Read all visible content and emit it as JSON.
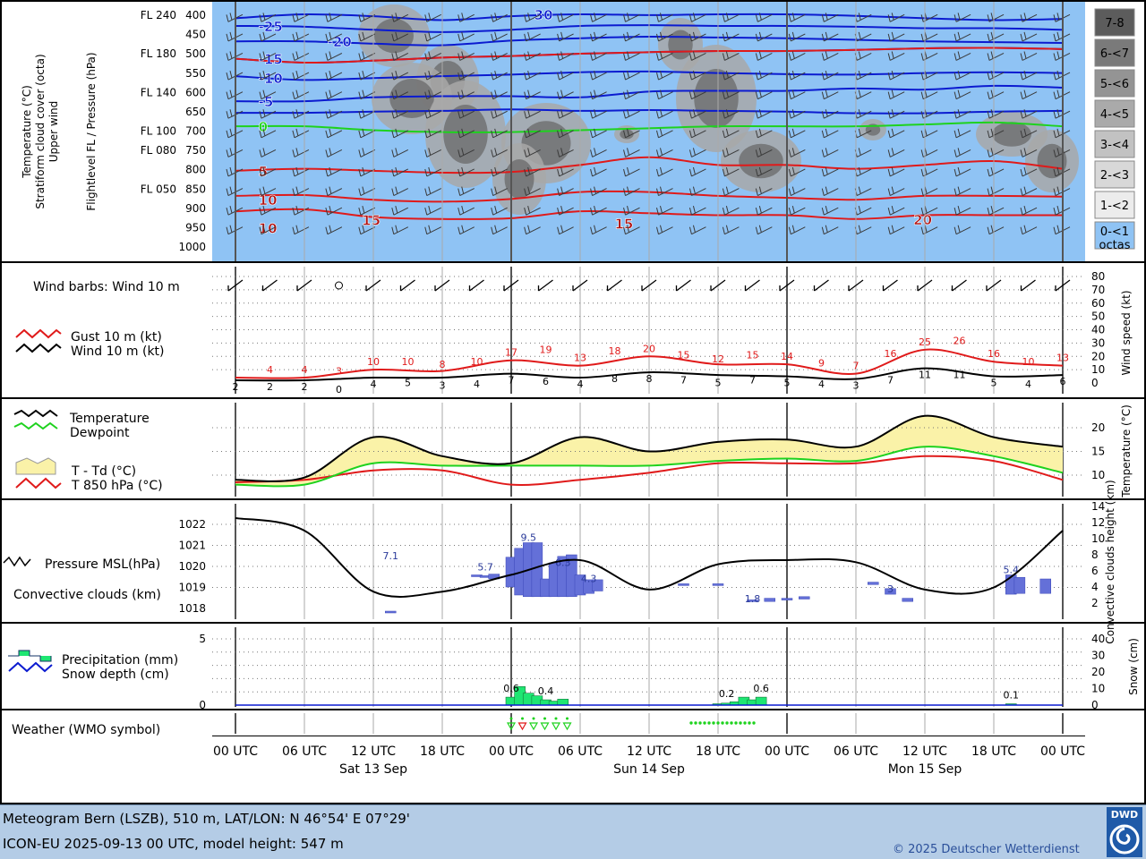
{
  "colors": {
    "sky": "#8fc3f4",
    "temp_iso": "#0b1bd0",
    "freeze": "#1ed21e",
    "warm_iso": "#e01a1a",
    "fill": "#faf2a8",
    "conv": "#6470d8",
    "precip": "#1ee672"
  },
  "header_panel": {
    "ylabel_left": [
      "Temperature (°C)",
      "Stratiform cloud cover (octa)",
      "Upper wind"
    ],
    "ylabel_right": "Flightlevel FL / Pressure (hPa)",
    "pressure_levels": [
      "400",
      "450",
      "500",
      "550",
      "600",
      "650",
      "700",
      "750",
      "800",
      "850",
      "900",
      "950",
      "1000"
    ],
    "flight_levels": [
      {
        "label": "FL 240",
        "level": "400"
      },
      {
        "label": "FL 180",
        "level": "500"
      },
      {
        "label": "FL 140",
        "level": "600"
      },
      {
        "label": "FL 100",
        "level": "700"
      },
      {
        "label": "FL 080",
        "level": "750"
      },
      {
        "label": "FL 050",
        "level": "850"
      }
    ],
    "octa_legend": [
      "7-8",
      "6-<7",
      "5-<6",
      "4-<5",
      "3-<4",
      "2-<3",
      "1-<2",
      "0-<1"
    ],
    "octa_unit": "octas",
    "iso_labels": [
      {
        "t": "-25",
        "x": 2,
        "p": 430,
        "color": "blue"
      },
      {
        "t": "-20",
        "x": 8,
        "p": 470,
        "color": "blue"
      },
      {
        "t": "30",
        "x": 26,
        "p": 400,
        "color": "blue"
      },
      {
        "t": "-15",
        "x": 2,
        "p": 515,
        "color": "blue"
      },
      {
        "t": "-10",
        "x": 2,
        "p": 565,
        "color": "blue"
      },
      {
        "t": "-5",
        "x": 2,
        "p": 625,
        "color": "blue"
      },
      {
        "t": "0",
        "x": 2,
        "p": 690,
        "color": "green"
      },
      {
        "t": "5",
        "x": 2,
        "p": 805,
        "color": "red"
      },
      {
        "t": "10",
        "x": 2,
        "p": 880,
        "color": "red"
      },
      {
        "t": "10",
        "x": 2,
        "p": 952,
        "color": "red"
      },
      {
        "t": "15",
        "x": 11,
        "p": 932,
        "color": "red"
      },
      {
        "t": "15",
        "x": 33,
        "p": 941,
        "color": "red"
      },
      {
        "t": "20",
        "x": 59,
        "p": 930,
        "color": "red"
      }
    ]
  },
  "wind_panel": {
    "title": "Wind barbs: Wind 10 m",
    "legend": [
      "Gust 10 m (kt)",
      "Wind 10 m (kt)"
    ],
    "ylabel": "Wind speed (kt)",
    "yticks": [
      "0",
      "10",
      "20",
      "30",
      "40",
      "50",
      "60",
      "70",
      "80"
    ],
    "gust_labels": [
      [
        "4",
        2
      ],
      [
        "4",
        4
      ],
      [
        "3",
        6
      ],
      [
        "10",
        8
      ],
      [
        "10",
        10
      ],
      [
        "8",
        12
      ],
      [
        "10",
        14
      ],
      [
        "17",
        16
      ],
      [
        "19",
        18
      ],
      [
        "13",
        20
      ],
      [
        "18",
        22
      ],
      [
        "20",
        24
      ],
      [
        "15",
        26
      ],
      [
        "12",
        28
      ],
      [
        "15",
        30
      ],
      [
        "14",
        32
      ],
      [
        "9",
        34
      ],
      [
        "7",
        36
      ],
      [
        "16",
        38
      ],
      [
        "25",
        40
      ],
      [
        "26",
        42
      ],
      [
        "16",
        44
      ],
      [
        "10",
        46
      ],
      [
        "13",
        48
      ]
    ],
    "wind_labels": [
      [
        "2",
        0
      ],
      [
        "2",
        2
      ],
      [
        "2",
        4
      ],
      [
        "0",
        6
      ],
      [
        "4",
        8
      ],
      [
        "5",
        10
      ],
      [
        "3",
        12
      ],
      [
        "4",
        14
      ],
      [
        "7",
        16
      ],
      [
        "6",
        18
      ],
      [
        "4",
        20
      ],
      [
        "8",
        22
      ],
      [
        "8",
        24
      ],
      [
        "7",
        26
      ],
      [
        "5",
        28
      ],
      [
        "7",
        30
      ],
      [
        "5",
        32
      ],
      [
        "4",
        34
      ],
      [
        "3",
        36
      ],
      [
        "7",
        38
      ],
      [
        "11",
        40
      ],
      [
        "11",
        42
      ],
      [
        "5",
        44
      ],
      [
        "4",
        46
      ],
      [
        "6",
        48
      ]
    ]
  },
  "temp_panel": {
    "legend": [
      "Temperature",
      "Dewpoint",
      "T - Td (°C)",
      "T 850 hPa (°C)"
    ],
    "ylabel": "Temperature (°C)",
    "yticks": [
      "10",
      "15",
      "20"
    ]
  },
  "pressure_panel": {
    "legend": [
      "Pressure MSL(hPa)",
      "Convective clouds (km)"
    ],
    "ylabel": "Convective clouds height (km)",
    "yticks_left": [
      "1018",
      "1019",
      "1020",
      "1021",
      "1022"
    ],
    "yticks_right": [
      "2",
      "4",
      "6",
      "8",
      "10",
      "12",
      "14"
    ],
    "bar_labels": [
      [
        "7.1",
        9
      ],
      [
        "5.7",
        14.5
      ],
      [
        "9.5",
        17
      ],
      [
        "6.3",
        19
      ],
      [
        "4.3",
        20.5
      ],
      [
        "1.8",
        30
      ],
      [
        "3",
        38
      ],
      [
        "5.4",
        45
      ]
    ]
  },
  "precip_panel": {
    "legend": [
      "Precipitation (mm)",
      "Snow depth (cm)"
    ],
    "ylabel": "Snow (cm)",
    "yticks_left": [
      "0",
      "5"
    ],
    "yticks_right": [
      "0",
      "10",
      "20",
      "30",
      "40"
    ],
    "bar_labels": [
      [
        "0.6",
        16
      ],
      [
        "0.4",
        18
      ],
      [
        "0.2",
        28.5
      ],
      [
        "0.6",
        30.5
      ],
      [
        "0.1",
        45
      ]
    ]
  },
  "weather_panel": {
    "title": "Weather (WMO symbol)"
  },
  "time_axis": {
    "ticks": [
      "00 UTC",
      "06 UTC",
      "12 UTC",
      "18 UTC",
      "00 UTC",
      "06 UTC",
      "12 UTC",
      "18 UTC",
      "00 UTC",
      "06 UTC",
      "12 UTC",
      "18 UTC",
      "00 UTC"
    ],
    "days": [
      "Sat 13 Sep",
      "Sun 14 Sep",
      "Mon 15 Sep"
    ]
  },
  "footer": {
    "line1": "Meteogram Bern (LSZB), 510 m, LAT/LON: N 46°54' E 07°29'",
    "line2": "ICON-EU 2025-09-13 00 UTC, model height: 547 m",
    "copyright": "© 2025 Deutscher Wetterdienst",
    "logo_text": "DWD"
  },
  "chart_data": [
    {
      "type": "line",
      "title": "Temperature / Stratiform cloud cover / Upper wind",
      "ylabel": "Flightlevel FL / Pressure (hPa)",
      "ylim": [
        1000,
        400
      ],
      "x_unit": "hours since Sat 13 Sep 00 UTC",
      "x": [
        0,
        6,
        12,
        18,
        24,
        30,
        36,
        42,
        48,
        54,
        60,
        66,
        72
      ],
      "series": [
        {
          "name": "-15",
          "values": [
            515,
            525,
            520,
            512,
            508,
            502,
            498,
            495,
            495,
            492,
            488,
            487,
            490
          ]
        },
        {
          "name": "0",
          "values": [
            690,
            690,
            700,
            705,
            705,
            700,
            695,
            690,
            690,
            690,
            685,
            680,
            690
          ]
        },
        {
          "name": "5",
          "values": [
            805,
            800,
            805,
            810,
            808,
            790,
            770,
            790,
            790,
            800,
            790,
            780,
            800
          ]
        }
      ]
    },
    {
      "type": "line",
      "title": "Wind 10 m",
      "ylabel": "Wind speed (kt)",
      "ylim": [
        0,
        80
      ],
      "x": [
        0,
        6,
        12,
        18,
        24,
        30,
        36,
        42,
        48,
        54,
        60,
        66,
        72
      ],
      "series": [
        {
          "name": "Gust 10 m (kt)",
          "values": [
            4,
            4,
            10,
            9,
            17,
            13,
            20,
            14,
            14,
            7,
            25,
            16,
            13
          ]
        },
        {
          "name": "Wind 10 m (kt)",
          "values": [
            2,
            2,
            4,
            4,
            7,
            4,
            8,
            6,
            5,
            3,
            11,
            5,
            6
          ]
        }
      ]
    },
    {
      "type": "line",
      "title": "Temperature",
      "ylabel": "Temperature (°C)",
      "ylim": [
        7,
        25
      ],
      "x": [
        0,
        6,
        12,
        18,
        24,
        30,
        36,
        42,
        48,
        54,
        60,
        66,
        72
      ],
      "series": [
        {
          "name": "Temperature",
          "values": [
            9,
            9.5,
            18,
            14,
            12.5,
            18,
            15,
            17,
            17.5,
            16,
            22.5,
            18,
            16
          ]
        },
        {
          "name": "Dewpoint",
          "values": [
            8,
            8,
            12.5,
            12,
            12,
            12,
            12,
            13,
            13.5,
            13,
            16,
            14,
            10.5
          ]
        },
        {
          "name": "T 850 hPa (°C)",
          "values": [
            8.5,
            9,
            11,
            11,
            8,
            9,
            10.5,
            12.5,
            12.5,
            12.5,
            14,
            13,
            9
          ]
        }
      ]
    },
    {
      "type": "line",
      "title": "Pressure MSL",
      "ylabel": "Pressure MSL(hPa)",
      "ylim": [
        1017.5,
        1022.5
      ],
      "x": [
        0,
        6,
        12,
        18,
        24,
        30,
        36,
        42,
        48,
        54,
        60,
        66,
        72
      ],
      "series": [
        {
          "name": "Pressure MSL(hPa)",
          "values": [
            1022.3,
            1021.7,
            1018.8,
            1018.8,
            1019.6,
            1020.3,
            1018.9,
            1020.1,
            1020.3,
            1020.2,
            1018.9,
            1019.0,
            1021.7
          ]
        }
      ]
    }
  ]
}
